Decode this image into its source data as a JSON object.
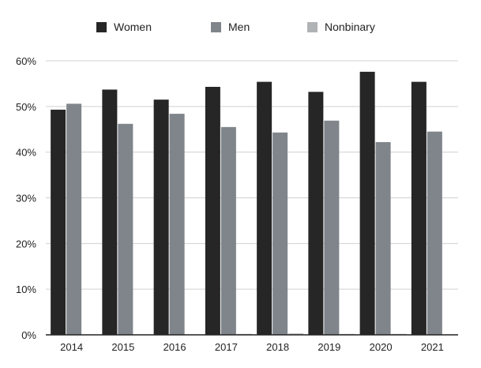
{
  "chart_data": {
    "type": "bar",
    "categories": [
      "2014",
      "2015",
      "2016",
      "2017",
      "2018",
      "2019",
      "2020",
      "2021"
    ],
    "series": [
      {
        "name": "Women",
        "color": "#262626",
        "values": [
          49.3,
          53.7,
          51.5,
          54.3,
          55.4,
          53.2,
          57.6,
          55.4
        ]
      },
      {
        "name": "Men",
        "color": "#7f858b",
        "values": [
          50.6,
          46.2,
          48.4,
          45.5,
          44.3,
          46.9,
          42.2,
          44.5
        ]
      },
      {
        "name": "Nonbinary",
        "color": "#b0b3b6",
        "values": [
          0,
          0.1,
          0.1,
          0.2,
          0.3,
          0.2,
          0.2,
          0.1
        ]
      }
    ],
    "title": "",
    "xlabel": "",
    "ylabel": "",
    "ylim": [
      0,
      60
    ],
    "yticks": [
      "0%",
      "10%",
      "20%",
      "30%",
      "40%",
      "50%",
      "60%"
    ],
    "grid": true,
    "legend_position": "top"
  }
}
